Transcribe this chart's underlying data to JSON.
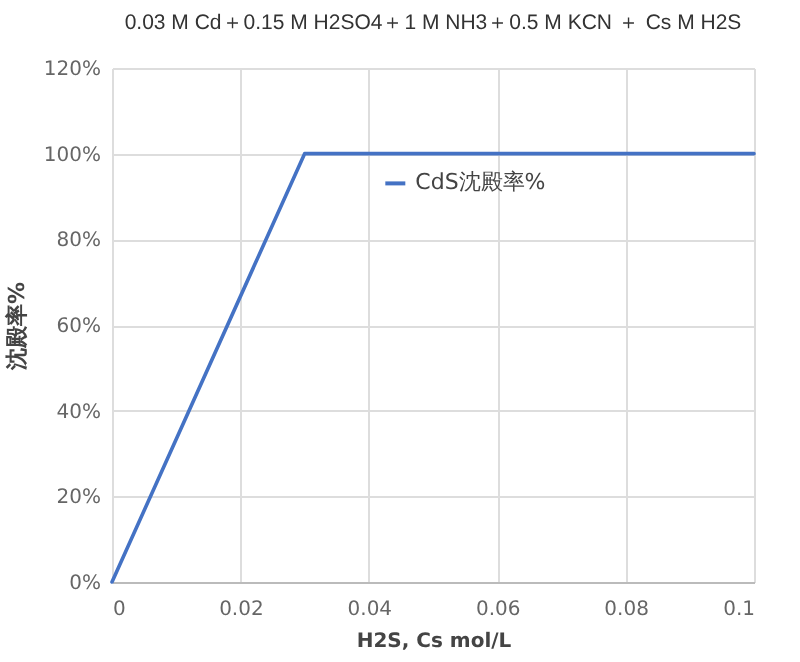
{
  "chart_data": {
    "type": "line",
    "title": "0.03 M Cd＋0.15 M H2SO4＋1 M NH3＋0.5 M KCN ＋ Cs M H2S",
    "xlabel": "H2S, Cs mol/L",
    "ylabel": "沈殿率%",
    "x": [
      0,
      0.03,
      0.1
    ],
    "series": [
      {
        "name": "CdS沈殿率%",
        "color": "#4472c4",
        "values": [
          0,
          100,
          100
        ]
      }
    ],
    "xlim": [
      0,
      0.1
    ],
    "xticks": [
      0,
      0.02,
      0.04,
      0.06,
      0.08,
      0.1
    ],
    "ylim": [
      0,
      120
    ],
    "yticks": [
      {
        "value": 0,
        "label": "0%"
      },
      {
        "value": 20,
        "label": "20%"
      },
      {
        "value": 40,
        "label": "40%"
      },
      {
        "value": 60,
        "label": "60%"
      },
      {
        "value": 80,
        "label": "80%"
      },
      {
        "value": 100,
        "label": "100%"
      },
      {
        "value": 120,
        "label": "120%"
      }
    ],
    "grid": true,
    "legend": "center",
    "marker": "none",
    "line_style": "solid"
  }
}
